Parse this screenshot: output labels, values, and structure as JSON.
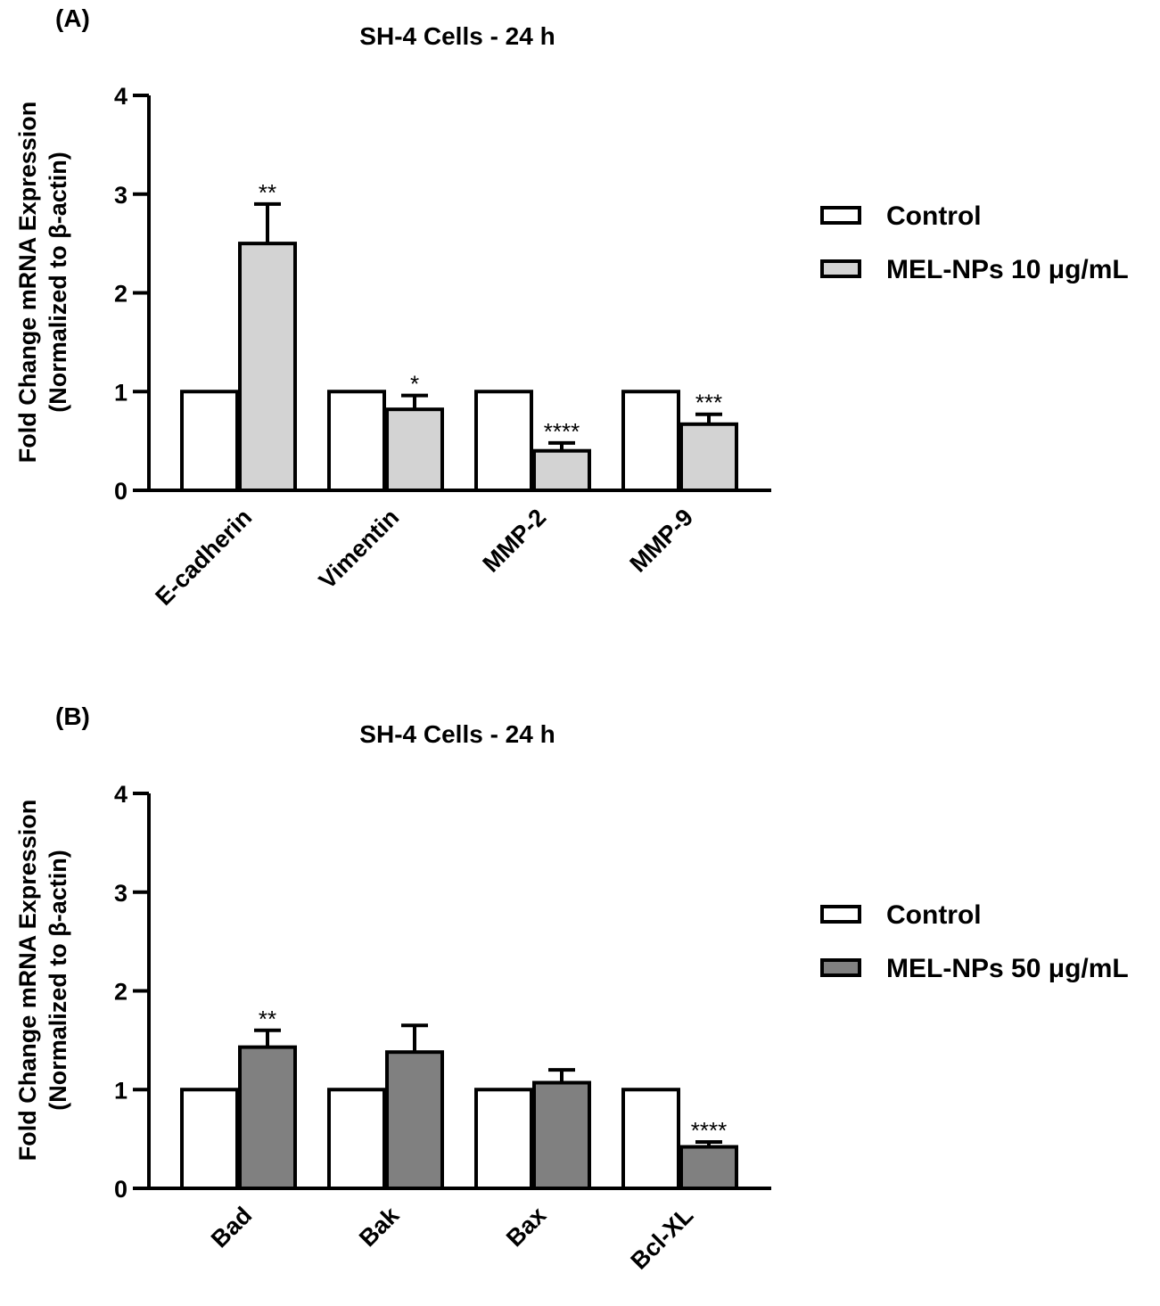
{
  "chart_data": [
    {
      "panel": "(A)",
      "type": "bar",
      "title": "SH-4 Cells - 24 h",
      "xlabel": "",
      "ylabel": [
        "Fold Change mRNA Expression",
        "(Normalized to β-actin)"
      ],
      "ylim": [
        0,
        4
      ],
      "yticks": [
        "0",
        "1",
        "2",
        "3",
        "4"
      ],
      "categories": [
        "E-cadherin",
        "Vimentin",
        "MMP-2",
        "MMP-9"
      ],
      "series": [
        {
          "name": "Control",
          "color": "#ffffff",
          "values": [
            1,
            1,
            1,
            1
          ],
          "errors": [
            0,
            0,
            0,
            0
          ]
        },
        {
          "name": "MEL-NPs 10 μg/mL",
          "color": "#d3d3d3",
          "values": [
            2.5,
            0.82,
            0.4,
            0.67
          ],
          "errors": [
            0.4,
            0.14,
            0.08,
            0.1
          ]
        }
      ],
      "annotations": [
        "**",
        "*",
        "****",
        "***"
      ],
      "legend": "right"
    },
    {
      "panel": "(B)",
      "type": "bar",
      "title": "SH-4 Cells - 24 h",
      "xlabel": "",
      "ylabel": [
        "Fold Change mRNA Expression",
        "(Normalized to β-actin)"
      ],
      "ylim": [
        0,
        4
      ],
      "yticks": [
        "0",
        "1",
        "2",
        "3",
        "4"
      ],
      "categories": [
        "Bad",
        "Bak",
        "Bax",
        "Bcl-XL"
      ],
      "series": [
        {
          "name": "Control",
          "color": "#ffffff",
          "values": [
            1,
            1,
            1,
            1
          ],
          "errors": [
            0,
            0,
            0,
            0
          ]
        },
        {
          "name": "MEL-NPs 50 μg/mL",
          "color": "#808080",
          "values": [
            1.43,
            1.38,
            1.07,
            0.42
          ],
          "errors": [
            0.17,
            0.27,
            0.13,
            0.05
          ]
        }
      ],
      "annotations": [
        "**",
        "",
        "",
        "****"
      ],
      "legend": "right"
    }
  ]
}
